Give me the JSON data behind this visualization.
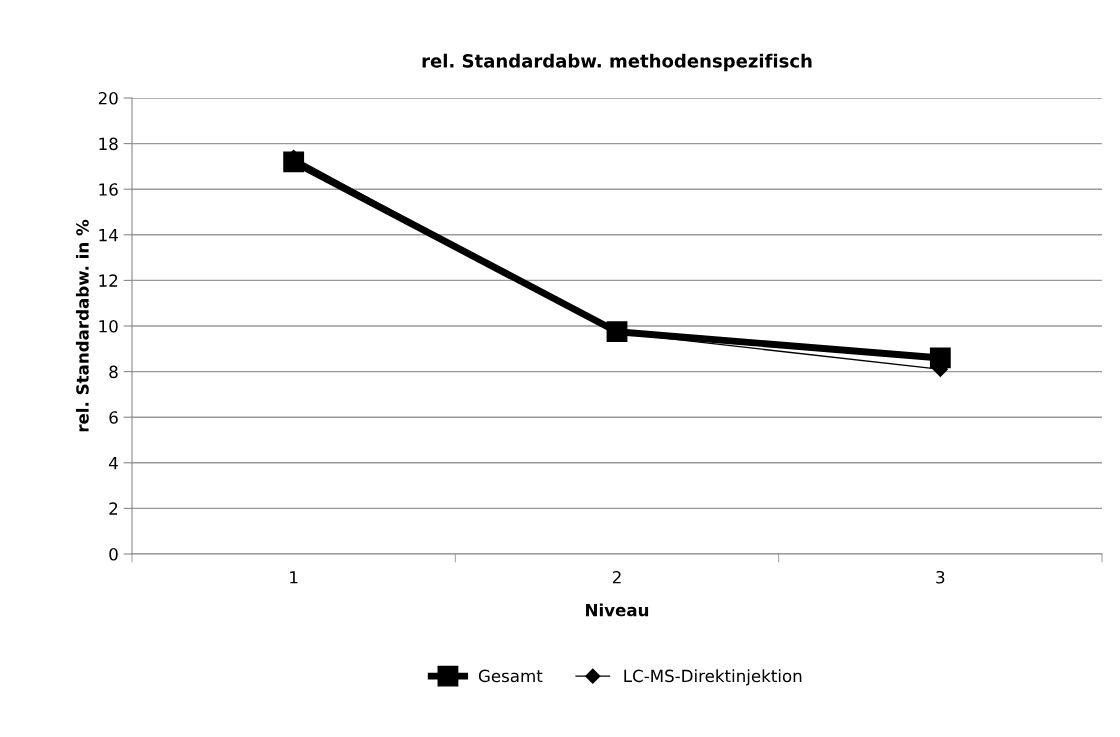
{
  "chart_data": {
    "type": "line",
    "title": "rel. Standardabw. methodenspezifisch",
    "xlabel": "Niveau",
    "ylabel": "rel. Standardabw. in %",
    "categories": [
      "1",
      "2",
      "3"
    ],
    "series": [
      {
        "name": "Gesamt",
        "color": "#000000",
        "values": [
          17.2,
          9.75,
          8.6
        ],
        "marker": "square"
      },
      {
        "name": "LC-MS-Direktinjektion",
        "color": "#000000",
        "values": [
          17.4,
          9.7,
          8.1
        ],
        "marker": "diamond"
      }
    ],
    "ylim": [
      0,
      20
    ],
    "yticks": [
      0,
      2,
      4,
      6,
      8,
      10,
      12,
      14,
      16,
      18,
      20
    ],
    "grid": "y",
    "legend": "bottom",
    "line_style": "solid"
  }
}
